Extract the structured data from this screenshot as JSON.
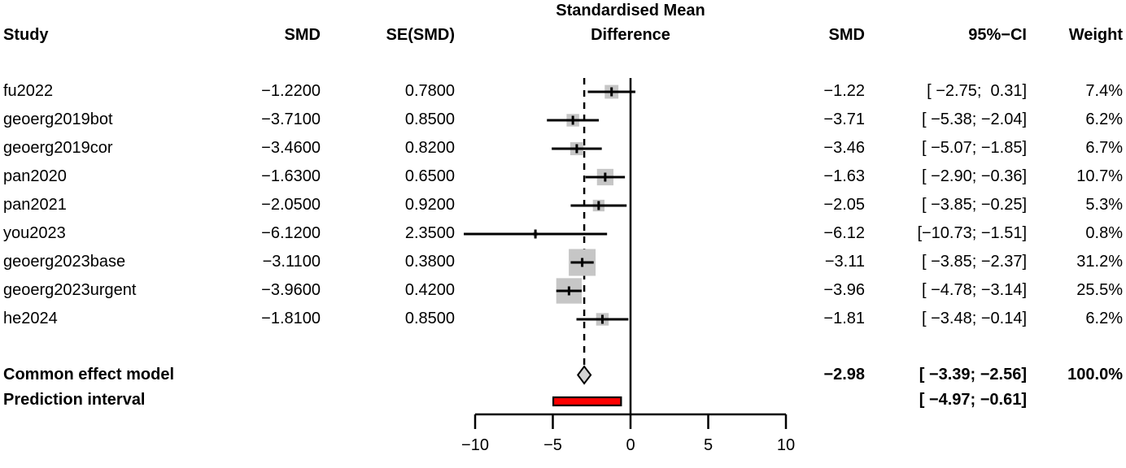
{
  "chart_data": {
    "type": "forest",
    "title_line1": "Standardised Mean",
    "title_line2": "Difference",
    "headers": {
      "study": "Study",
      "smd_input": "SMD",
      "se_input": "SE(SMD)",
      "smd": "SMD",
      "ci": "95%−CI",
      "weight": "Weight"
    },
    "studies": [
      {
        "name": "fu2022",
        "smd_input": "−1.2200",
        "se_input": "0.7800",
        "smd": "−1.22",
        "ci": "[ −2.75;  0.31]",
        "weight": "7.4%",
        "est": -1.22,
        "lo": -2.75,
        "hi": 0.31,
        "weight_pct": 7.4
      },
      {
        "name": "geoerg2019bot",
        "smd_input": "−3.7100",
        "se_input": "0.8500",
        "smd": "−3.71",
        "ci": "[ −5.38; −2.04]",
        "weight": "6.2%",
        "est": -3.71,
        "lo": -5.38,
        "hi": -2.04,
        "weight_pct": 6.2
      },
      {
        "name": "geoerg2019cor",
        "smd_input": "−3.4600",
        "se_input": "0.8200",
        "smd": "−3.46",
        "ci": "[ −5.07; −1.85]",
        "weight": "6.7%",
        "est": -3.46,
        "lo": -5.07,
        "hi": -1.85,
        "weight_pct": 6.7
      },
      {
        "name": "pan2020",
        "smd_input": "−1.6300",
        "se_input": "0.6500",
        "smd": "−1.63",
        "ci": "[ −2.90; −0.36]",
        "weight": "10.7%",
        "est": -1.63,
        "lo": -2.9,
        "hi": -0.36,
        "weight_pct": 10.7
      },
      {
        "name": "pan2021",
        "smd_input": "−2.0500",
        "se_input": "0.9200",
        "smd": "−2.05",
        "ci": "[ −3.85; −0.25]",
        "weight": "5.3%",
        "est": -2.05,
        "lo": -3.85,
        "hi": -0.25,
        "weight_pct": 5.3
      },
      {
        "name": "you2023",
        "smd_input": "−6.1200",
        "se_input": "2.3500",
        "smd": "−6.12",
        "ci": "[−10.73; −1.51]",
        "weight": "0.8%",
        "est": -6.12,
        "lo": -10.73,
        "hi": -1.51,
        "weight_pct": 0.8
      },
      {
        "name": "geoerg2023base",
        "smd_input": "−3.1100",
        "se_input": "0.3800",
        "smd": "−3.11",
        "ci": "[ −3.85; −2.37]",
        "weight": "31.2%",
        "est": -3.11,
        "lo": -3.85,
        "hi": -2.37,
        "weight_pct": 31.2
      },
      {
        "name": "geoerg2023urgent",
        "smd_input": "−3.9600",
        "se_input": "0.4200",
        "smd": "−3.96",
        "ci": "[ −4.78; −3.14]",
        "weight": "25.5%",
        "est": -3.96,
        "lo": -4.78,
        "hi": -3.14,
        "weight_pct": 25.5
      },
      {
        "name": "he2024",
        "smd_input": "−1.8100",
        "se_input": "0.8500",
        "smd": "−1.81",
        "ci": "[ −3.48; −0.14]",
        "weight": "6.2%",
        "est": -1.81,
        "lo": -3.48,
        "hi": -0.14,
        "weight_pct": 6.2
      }
    ],
    "summary": {
      "label": "Common effect model",
      "smd": "−2.98",
      "ci": "[ −3.39; −2.56]",
      "weight": "100.0%",
      "est": -2.98,
      "lo": -3.39,
      "hi": -2.56
    },
    "prediction": {
      "label": "Prediction interval",
      "ci": "[ −4.97; −0.61]",
      "lo": -4.97,
      "hi": -0.61
    },
    "axis": {
      "xlim": [
        -10,
        10
      ],
      "ticks": [
        -10,
        -5,
        0,
        5,
        10
      ],
      "tick_labels": [
        "−10",
        "−5",
        "0",
        "5",
        "10"
      ],
      "reference_line": 0
    },
    "colors": {
      "square": "#c6c6c6",
      "diamond_fill": "#d4d4d4",
      "prediction_bar": "#fe0000",
      "line": "#000000",
      "background": "#ffffff"
    }
  }
}
